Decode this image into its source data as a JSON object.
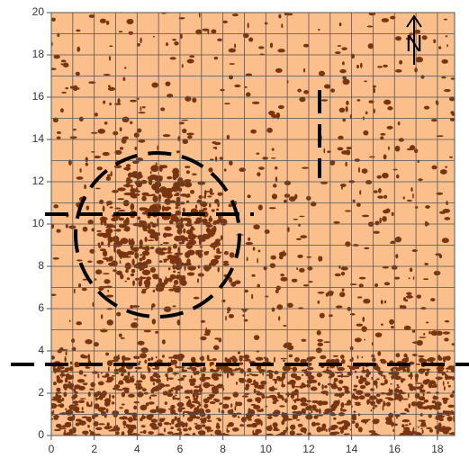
{
  "chart_data": {
    "type": "map",
    "xlim": [
      0,
      18.8
    ],
    "ylim": [
      0,
      20
    ],
    "xticks": [
      0,
      2,
      4,
      6,
      8,
      10,
      12,
      14,
      16,
      18
    ],
    "yticks": [
      0,
      2,
      4,
      6,
      8,
      10,
      12,
      14,
      16,
      18,
      20
    ],
    "grid": true,
    "background": "#fbbf8c",
    "speckle_color": "#7a3410",
    "north_label": "N"
  }
}
